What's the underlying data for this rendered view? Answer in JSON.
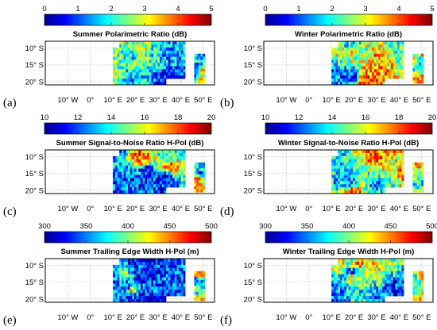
{
  "colormap": [
    "#00008f",
    "#0000ff",
    "#0080ff",
    "#00ffff",
    "#80ff80",
    "#ffff00",
    "#ff8000",
    "#ff0000",
    "#800000"
  ],
  "chart_data": [
    {
      "id": "a",
      "letter": "(a)",
      "type": "heatmap",
      "title": "Summer Polarimetric Ratio (dB)",
      "colorbar": {
        "range": [
          0,
          5
        ],
        "ticks": [
          "0",
          "1",
          "2",
          "3",
          "4",
          "5"
        ]
      },
      "xlim": [
        -20,
        55
      ],
      "ylim": [
        -21,
        -8
      ],
      "xticks": [
        "10° W",
        "0°",
        "10° E",
        "20° E",
        "30° E",
        "40° E",
        "50° E"
      ],
      "yticks": [
        "10° S",
        "15° S",
        "20° S"
      ],
      "grid": true
    },
    {
      "id": "b",
      "letter": "(b)",
      "type": "heatmap",
      "title": "Winter Polarimetric Ratio (dB)",
      "colorbar": {
        "range": [
          0,
          5
        ],
        "ticks": [
          "0",
          "1",
          "2",
          "3",
          "4",
          "5"
        ]
      },
      "xlim": [
        -20,
        55
      ],
      "ylim": [
        -21,
        -8
      ],
      "xticks": [
        "10° W",
        "0°",
        "10° E",
        "20° E",
        "30° E",
        "40° E",
        "50° E"
      ],
      "yticks": [
        "10° S",
        "15° S",
        "20° S"
      ],
      "grid": true
    },
    {
      "id": "c",
      "letter": "(c)",
      "type": "heatmap",
      "title": "Summer Signal-to-Noise Ratio H-Pol (dB)",
      "colorbar": {
        "range": [
          10,
          20
        ],
        "ticks": [
          "10",
          "12",
          "14",
          "16",
          "18",
          "20"
        ]
      },
      "xlim": [
        -20,
        55
      ],
      "ylim": [
        -21,
        -8
      ],
      "xticks": [
        "10° W",
        "0°",
        "10° E",
        "20° E",
        "30° E",
        "40° E",
        "50° E"
      ],
      "yticks": [
        "10° S",
        "15° S",
        "20° S"
      ],
      "grid": true
    },
    {
      "id": "d",
      "letter": "(d)",
      "type": "heatmap",
      "title": "Winter Signal-to-Noise Ratio H-Pol (dB)",
      "colorbar": {
        "range": [
          10,
          20
        ],
        "ticks": [
          "10",
          "12",
          "14",
          "16",
          "18",
          "20"
        ]
      },
      "xlim": [
        -20,
        55
      ],
      "ylim": [
        -21,
        -8
      ],
      "xticks": [
        "10° W",
        "0°",
        "10° E",
        "20° E",
        "30° E",
        "40° E",
        "50° E"
      ],
      "yticks": [
        "10° S",
        "15° S",
        "20° S"
      ],
      "grid": true
    },
    {
      "id": "e",
      "letter": "(e)",
      "type": "heatmap",
      "title": "Summer Trailing Edge Width H-Pol (m)",
      "colorbar": {
        "range": [
          300,
          500
        ],
        "ticks": [
          "300",
          "350",
          "400",
          "450",
          "500"
        ]
      },
      "xlim": [
        -20,
        55
      ],
      "ylim": [
        -21,
        -8
      ],
      "xticks": [
        "10° W",
        "0°",
        "10° E",
        "20° E",
        "30° E",
        "40° E",
        "50° E"
      ],
      "yticks": [
        "10° S",
        "15° S",
        "20° S"
      ],
      "grid": true
    },
    {
      "id": "f",
      "letter": "(f)",
      "type": "heatmap",
      "title": "Winter Trailing Edge Width H-Pol (m)",
      "colorbar": {
        "range": [
          300,
          500
        ],
        "ticks": [
          "300",
          "350",
          "400",
          "450",
          "500"
        ]
      },
      "xlim": [
        -20,
        55
      ],
      "ylim": [
        -21,
        -8
      ],
      "xticks": [
        "10° W",
        "0°",
        "10° E",
        "20° E",
        "30° E",
        "40° E",
        "50° E"
      ],
      "yticks": [
        "10° S",
        "15° S",
        "20° S"
      ],
      "grid": true
    }
  ]
}
